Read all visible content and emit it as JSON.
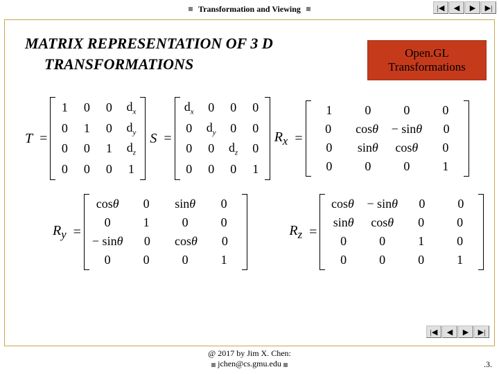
{
  "header": {
    "text": "Transformation and Viewing"
  },
  "nav": {
    "first": "|◀",
    "prev": "◀",
    "next": "▶",
    "last": "▶|"
  },
  "title": {
    "line1": "MATRIX REPRESENTATION OF 3 D",
    "line2": "TRANSFORMATIONS"
  },
  "badge": {
    "line1": "Open.GL",
    "line2": "Transformations",
    "bg": "#c63a1c"
  },
  "matrices": {
    "T": {
      "label": "T",
      "rows": [
        [
          "1",
          "0",
          "0",
          "d<sub>x</sub>"
        ],
        [
          "0",
          "1",
          "0",
          "d<sub>y</sub>"
        ],
        [
          "0",
          "0",
          "1",
          "d<sub>z</sub>"
        ],
        [
          "0",
          "0",
          "0",
          "1"
        ]
      ]
    },
    "S": {
      "label": "S",
      "rows": [
        [
          "d<sub>x</sub>",
          "0",
          "0",
          "0"
        ],
        [
          "0",
          "d<sub>y</sub>",
          "0",
          "0"
        ],
        [
          "0",
          "0",
          "d<sub>z</sub>",
          "0"
        ],
        [
          "0",
          "0",
          "0",
          "1"
        ]
      ]
    },
    "Rx": {
      "label": "R<sub>x</sub>",
      "rows": [
        [
          "1",
          "0",
          "0",
          "0"
        ],
        [
          "0",
          "cos<i>θ</i>",
          "− sin<i>θ</i>",
          "0"
        ],
        [
          "0",
          "sin<i>θ</i>",
          "cos<i>θ</i>",
          "0"
        ],
        [
          "0",
          "0",
          "0",
          "1"
        ]
      ]
    },
    "Ry": {
      "label": "R<sub>y</sub>",
      "rows": [
        [
          "cos<i>θ</i>",
          "0",
          "sin<i>θ</i>",
          "0"
        ],
        [
          "0",
          "1",
          "0",
          "0"
        ],
        [
          "− sin<i>θ</i>",
          "0",
          "cos<i>θ</i>",
          "0"
        ],
        [
          "0",
          "0",
          "0",
          "1"
        ]
      ]
    },
    "Rz": {
      "label": "R<sub>z</sub>",
      "rows": [
        [
          "cos<i>θ</i>",
          "− sin<i>θ</i>",
          "0",
          "0"
        ],
        [
          "sin<i>θ</i>",
          "cos<i>θ</i>",
          "0",
          "0"
        ],
        [
          "0",
          "0",
          "1",
          "0"
        ],
        [
          "0",
          "0",
          "0",
          "1"
        ]
      ]
    }
  },
  "footer": {
    "line1": "@ 2017 by Jim X. Chen:",
    "line2": "jchen@cs.gmu.edu"
  },
  "page": ".3.",
  "colors": {
    "border": "#c6a84a"
  }
}
